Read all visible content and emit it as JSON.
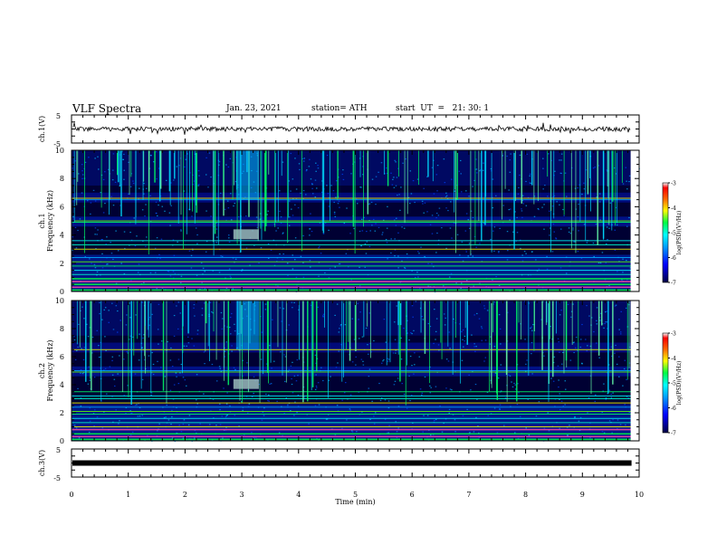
{
  "header": {
    "title": "VLF Spectra",
    "date": "Jan. 23, 2021",
    "station": "station= ATH",
    "start": "start  UT  =   21: 30: 1"
  },
  "colors": {
    "background": "#000033",
    "scale": [
      "#000066",
      "#0000ff",
      "#0088ff",
      "#00ffff",
      "#00ff66",
      "#ffff00",
      "#ff6600",
      "#ff0000",
      "#ffffff"
    ]
  },
  "chart_data": [
    {
      "type": "line",
      "ylabel": "ch.1(V)",
      "ylim": [
        -5,
        5
      ],
      "yticks": [
        "5",
        "-5"
      ],
      "xlim": [
        0,
        10
      ],
      "description_series": "ch.1 waveform amplitude",
      "baseline": 0
    },
    {
      "type": "heatmap",
      "ylabel_lines": [
        "ch.1",
        "Frequency  (kHz)"
      ],
      "ylim": [
        0,
        10
      ],
      "yticks": [
        "0",
        "2",
        "4",
        "6",
        "8",
        "10"
      ],
      "xlim": [
        0,
        10
      ],
      "colorbar": {
        "label": "log(PSD)(V²/Hz)",
        "range": [
          -7,
          -3
        ],
        "ticks": [
          "-3",
          "-4",
          "-5",
          "-6",
          "-7"
        ]
      },
      "bands_khz": [
        0.1,
        0.3,
        0.5,
        0.7,
        0.9,
        1.2,
        1.5,
        1.8,
        2.1,
        2.4,
        3.0,
        3.3,
        3.6,
        4.9,
        5.0,
        6.5,
        6.6
      ],
      "burst_t_min": [
        2.9,
        3.3
      ],
      "burst_f_khz": [
        3.7,
        10.0
      ]
    },
    {
      "type": "heatmap",
      "ylabel_lines": [
        "ch.2",
        "Frequency  (kHz)"
      ],
      "ylim": [
        0,
        10
      ],
      "yticks": [
        "0",
        "2",
        "4",
        "6",
        "8",
        "10"
      ],
      "xlim": [
        0,
        10
      ],
      "colorbar": {
        "label": "log(PSD)(V²/Hz)",
        "range": [
          -7,
          -3
        ],
        "ticks": [
          "-3",
          "-4",
          "-5",
          "-6",
          "-7"
        ]
      },
      "bands_khz": [
        0.1,
        0.3,
        0.5,
        0.8,
        1.0,
        1.3,
        1.6,
        1.9,
        2.1,
        2.4,
        2.7,
        3.0,
        3.2,
        3.5,
        4.9,
        5.0,
        6.5
      ],
      "burst_t_min": [
        2.9,
        3.3
      ],
      "burst_f_khz": [
        3.7,
        10.0
      ]
    },
    {
      "type": "line",
      "ylabel": "ch.3(V)",
      "ylim": [
        -5,
        5
      ],
      "yticks": [
        "5",
        "-5"
      ],
      "xlim": [
        0,
        10
      ],
      "xlabel": "Time  (min)",
      "xticks": [
        "0",
        "1",
        "2",
        "3",
        "4",
        "5",
        "6",
        "7",
        "8",
        "9",
        "10"
      ],
      "baseline": 0,
      "data_end_min": 9.85
    }
  ]
}
